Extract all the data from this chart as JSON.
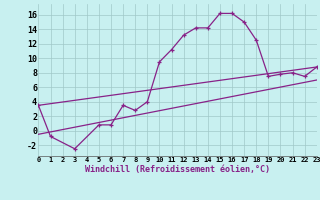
{
  "xlabel": "Windchill (Refroidissement éolien,°C)",
  "background_color": "#c8f0f0",
  "grid_color": "#a0c8c8",
  "line_color": "#882288",
  "x_hours": [
    0,
    1,
    2,
    3,
    4,
    5,
    6,
    7,
    8,
    9,
    10,
    11,
    12,
    13,
    14,
    15,
    16,
    17,
    18,
    19,
    20,
    21,
    22,
    23
  ],
  "temp_curve": [
    3.5,
    -0.8,
    null,
    -2.5,
    null,
    0.8,
    0.8,
    3.5,
    2.8,
    4.0,
    9.5,
    11.2,
    13.2,
    14.2,
    14.2,
    16.2,
    16.2,
    15.0,
    12.5,
    7.5,
    7.8,
    8.0,
    7.5,
    8.8
  ],
  "line1_x": [
    0,
    23
  ],
  "line1_y": [
    3.5,
    8.8
  ],
  "line2_x": [
    0,
    23
  ],
  "line2_y": [
    -0.5,
    7.0
  ],
  "ylim": [
    -3.5,
    17.5
  ],
  "xlim": [
    0,
    23
  ],
  "yticks": [
    -2,
    0,
    2,
    4,
    6,
    8,
    10,
    12,
    14,
    16
  ],
  "xtick_labels": [
    "0",
    "1",
    "2",
    "3",
    "4",
    "5",
    "6",
    "7",
    "8",
    "9",
    "10",
    "11",
    "12",
    "13",
    "14",
    "15",
    "16",
    "17",
    "18",
    "19",
    "20",
    "21",
    "22",
    "23"
  ],
  "tick_fontsize": 5.0,
  "label_fontsize": 6.0
}
